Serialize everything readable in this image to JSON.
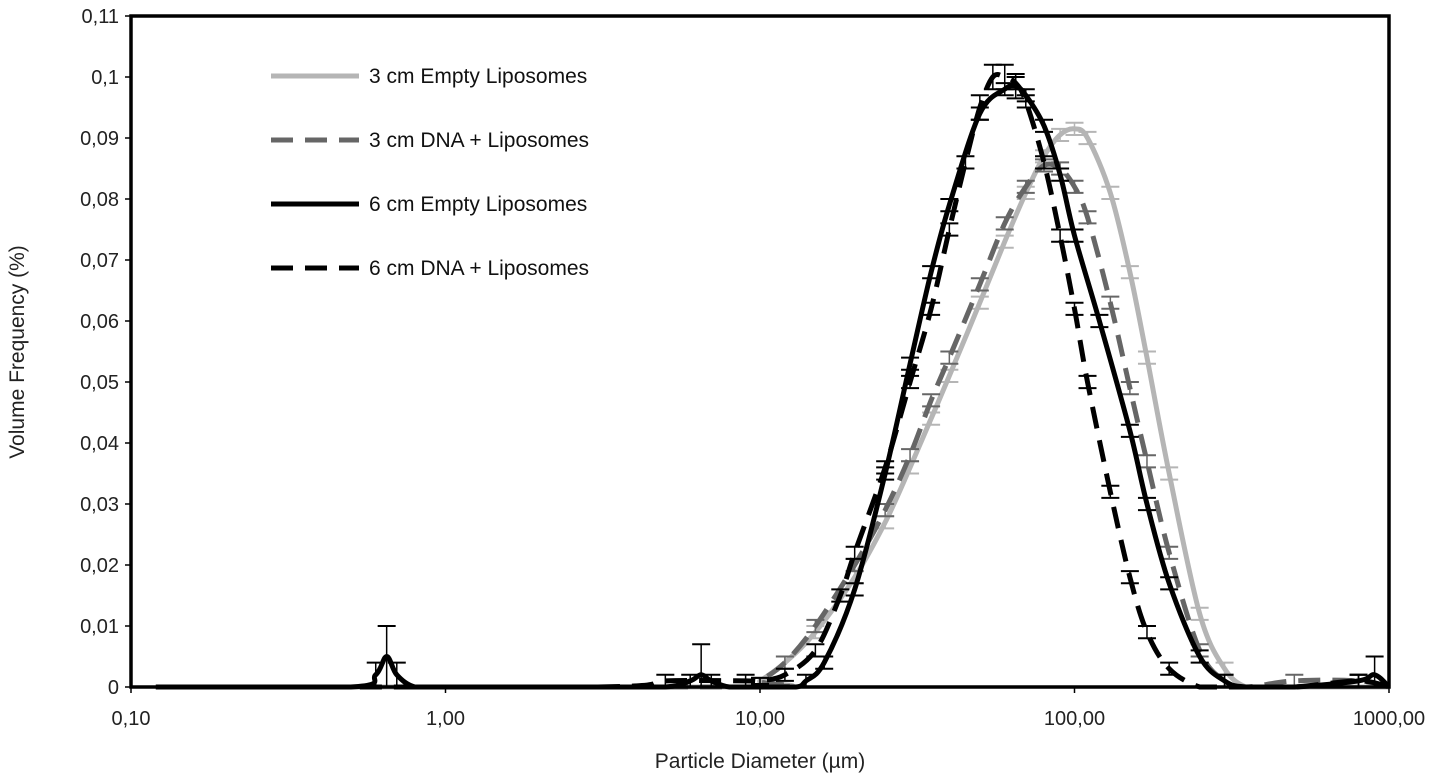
{
  "chart_data": {
    "type": "line",
    "title": "",
    "xlabel": "Particle Diameter (µm)",
    "ylabel": "Volume Frequency (%)",
    "x_scale": "log",
    "xlim": [
      0.1,
      1000
    ],
    "ylim": [
      0,
      0.11
    ],
    "x_ticks": [
      0.1,
      1,
      10,
      100,
      1000
    ],
    "x_tick_labels": [
      "0,10",
      "1,00",
      "10,00",
      "100,00",
      "1000,00"
    ],
    "y_ticks": [
      0,
      0.01,
      0.02,
      0.03,
      0.04,
      0.05,
      0.06,
      0.07,
      0.08,
      0.09,
      0.1,
      0.11
    ],
    "y_tick_labels": [
      "0",
      "0,01",
      "0,02",
      "0,03",
      "0,04",
      "0,05",
      "0,06",
      "0,07",
      "0,08",
      "0,09",
      "0,1",
      "0,11"
    ],
    "grid": false,
    "legend_position": "top-left",
    "series": [
      {
        "name": "3 cm Empty Liposomes",
        "color": "#b5b5b5",
        "style": "solid",
        "x": [
          0.12,
          9,
          10,
          12,
          15,
          20,
          25,
          30,
          35,
          40,
          50,
          60,
          70,
          80,
          90,
          100,
          110,
          130,
          150,
          170,
          200,
          250,
          300,
          350,
          400,
          500,
          800,
          1000
        ],
        "y": [
          0,
          0,
          0.001,
          0.004,
          0.009,
          0.018,
          0.027,
          0.036,
          0.044,
          0.051,
          0.063,
          0.073,
          0.081,
          0.087,
          0.0905,
          0.0915,
          0.09,
          0.081,
          0.068,
          0.054,
          0.035,
          0.012,
          0.003,
          0,
          0,
          0,
          0,
          0
        ],
        "error": [
          0,
          0,
          0.0005,
          0.001,
          0.001,
          0.001,
          0.001,
          0.001,
          0.001,
          0.001,
          0.001,
          0.001,
          0.001,
          0.001,
          0.001,
          0.001,
          0.001,
          0.001,
          0.001,
          0.001,
          0.001,
          0.001,
          0.001,
          0,
          0,
          0,
          0,
          0
        ]
      },
      {
        "name": "3 cm DNA + Liposomes",
        "color": "#666666",
        "style": "dashed",
        "x": [
          0.12,
          9,
          10,
          12,
          15,
          20,
          25,
          30,
          35,
          40,
          50,
          60,
          70,
          80,
          90,
          100,
          110,
          130,
          150,
          170,
          200,
          250,
          300,
          350,
          500,
          800,
          1000
        ],
        "y": [
          0,
          0,
          0.001,
          0.004,
          0.01,
          0.02,
          0.029,
          0.038,
          0.047,
          0.054,
          0.066,
          0.076,
          0.082,
          0.0855,
          0.085,
          0.082,
          0.077,
          0.063,
          0.049,
          0.037,
          0.022,
          0.006,
          0.001,
          0,
          0.001,
          0.001,
          0
        ],
        "error": [
          0,
          0,
          0.0005,
          0.001,
          0.001,
          0.001,
          0.001,
          0.001,
          0.001,
          0.001,
          0.001,
          0.001,
          0.001,
          0.001,
          0.001,
          0.001,
          0.001,
          0.001,
          0.001,
          0.001,
          0.001,
          0.001,
          0.001,
          0,
          0.001,
          0.001,
          0
        ]
      },
      {
        "name": "6 cm Empty Liposomes",
        "color": "#000000",
        "style": "solid",
        "x": [
          0.12,
          0.5,
          0.6,
          0.65,
          0.7,
          0.8,
          1,
          3,
          5,
          6,
          6.5,
          7,
          8,
          10,
          13,
          14,
          16,
          20,
          25,
          30,
          35,
          40,
          50,
          60,
          65,
          70,
          80,
          90,
          100,
          120,
          150,
          170,
          200,
          250,
          300,
          350,
          500,
          800,
          900,
          1000
        ],
        "y": [
          0,
          0,
          0.002,
          0.005,
          0.002,
          0,
          0,
          0,
          0,
          0.001,
          0.002,
          0.001,
          0,
          0,
          0,
          0.001,
          0.004,
          0.016,
          0.035,
          0.053,
          0.068,
          0.079,
          0.094,
          0.098,
          0.0985,
          0.097,
          0.092,
          0.084,
          0.074,
          0.06,
          0.042,
          0.03,
          0.017,
          0.005,
          0.001,
          0,
          0,
          0.001,
          0.002,
          0
        ],
        "error": [
          0,
          0,
          0.002,
          0.005,
          0.002,
          0,
          0,
          0,
          0,
          0.001,
          0.005,
          0.001,
          0,
          0,
          0,
          0.001,
          0.001,
          0.001,
          0.001,
          0.001,
          0.001,
          0.001,
          0.001,
          0.001,
          0.002,
          0.001,
          0.001,
          0.001,
          0.001,
          0.001,
          0.001,
          0.001,
          0.001,
          0.001,
          0.001,
          0,
          0,
          0.001,
          0.003,
          0
        ]
      },
      {
        "name": "6 cm DNA + Liposomes",
        "color": "#000000",
        "style": "dashed",
        "x": [
          0.12,
          3,
          5,
          9,
          10,
          12,
          15,
          18,
          20,
          25,
          30,
          35,
          40,
          45,
          50,
          55,
          60,
          65,
          70,
          80,
          90,
          100,
          110,
          130,
          150,
          170,
          200,
          250,
          300,
          350,
          500,
          800,
          1000
        ],
        "y": [
          0,
          0,
          0.001,
          0.001,
          0.001,
          0.002,
          0.006,
          0.015,
          0.022,
          0.036,
          0.05,
          0.062,
          0.075,
          0.086,
          0.095,
          0.1,
          0.1,
          0.099,
          0.096,
          0.086,
          0.074,
          0.062,
          0.05,
          0.032,
          0.018,
          0.009,
          0.003,
          0,
          0,
          0,
          0,
          0.001,
          0
        ],
        "error": [
          0,
          0,
          0.001,
          0.001,
          0.0005,
          0.001,
          0.001,
          0.001,
          0.001,
          0.001,
          0.001,
          0.001,
          0.001,
          0.001,
          0.002,
          0.002,
          0.002,
          0.001,
          0.001,
          0.001,
          0.001,
          0.001,
          0.001,
          0.001,
          0.001,
          0.001,
          0.001,
          0,
          0,
          0,
          0,
          0.001,
          0
        ]
      }
    ]
  }
}
